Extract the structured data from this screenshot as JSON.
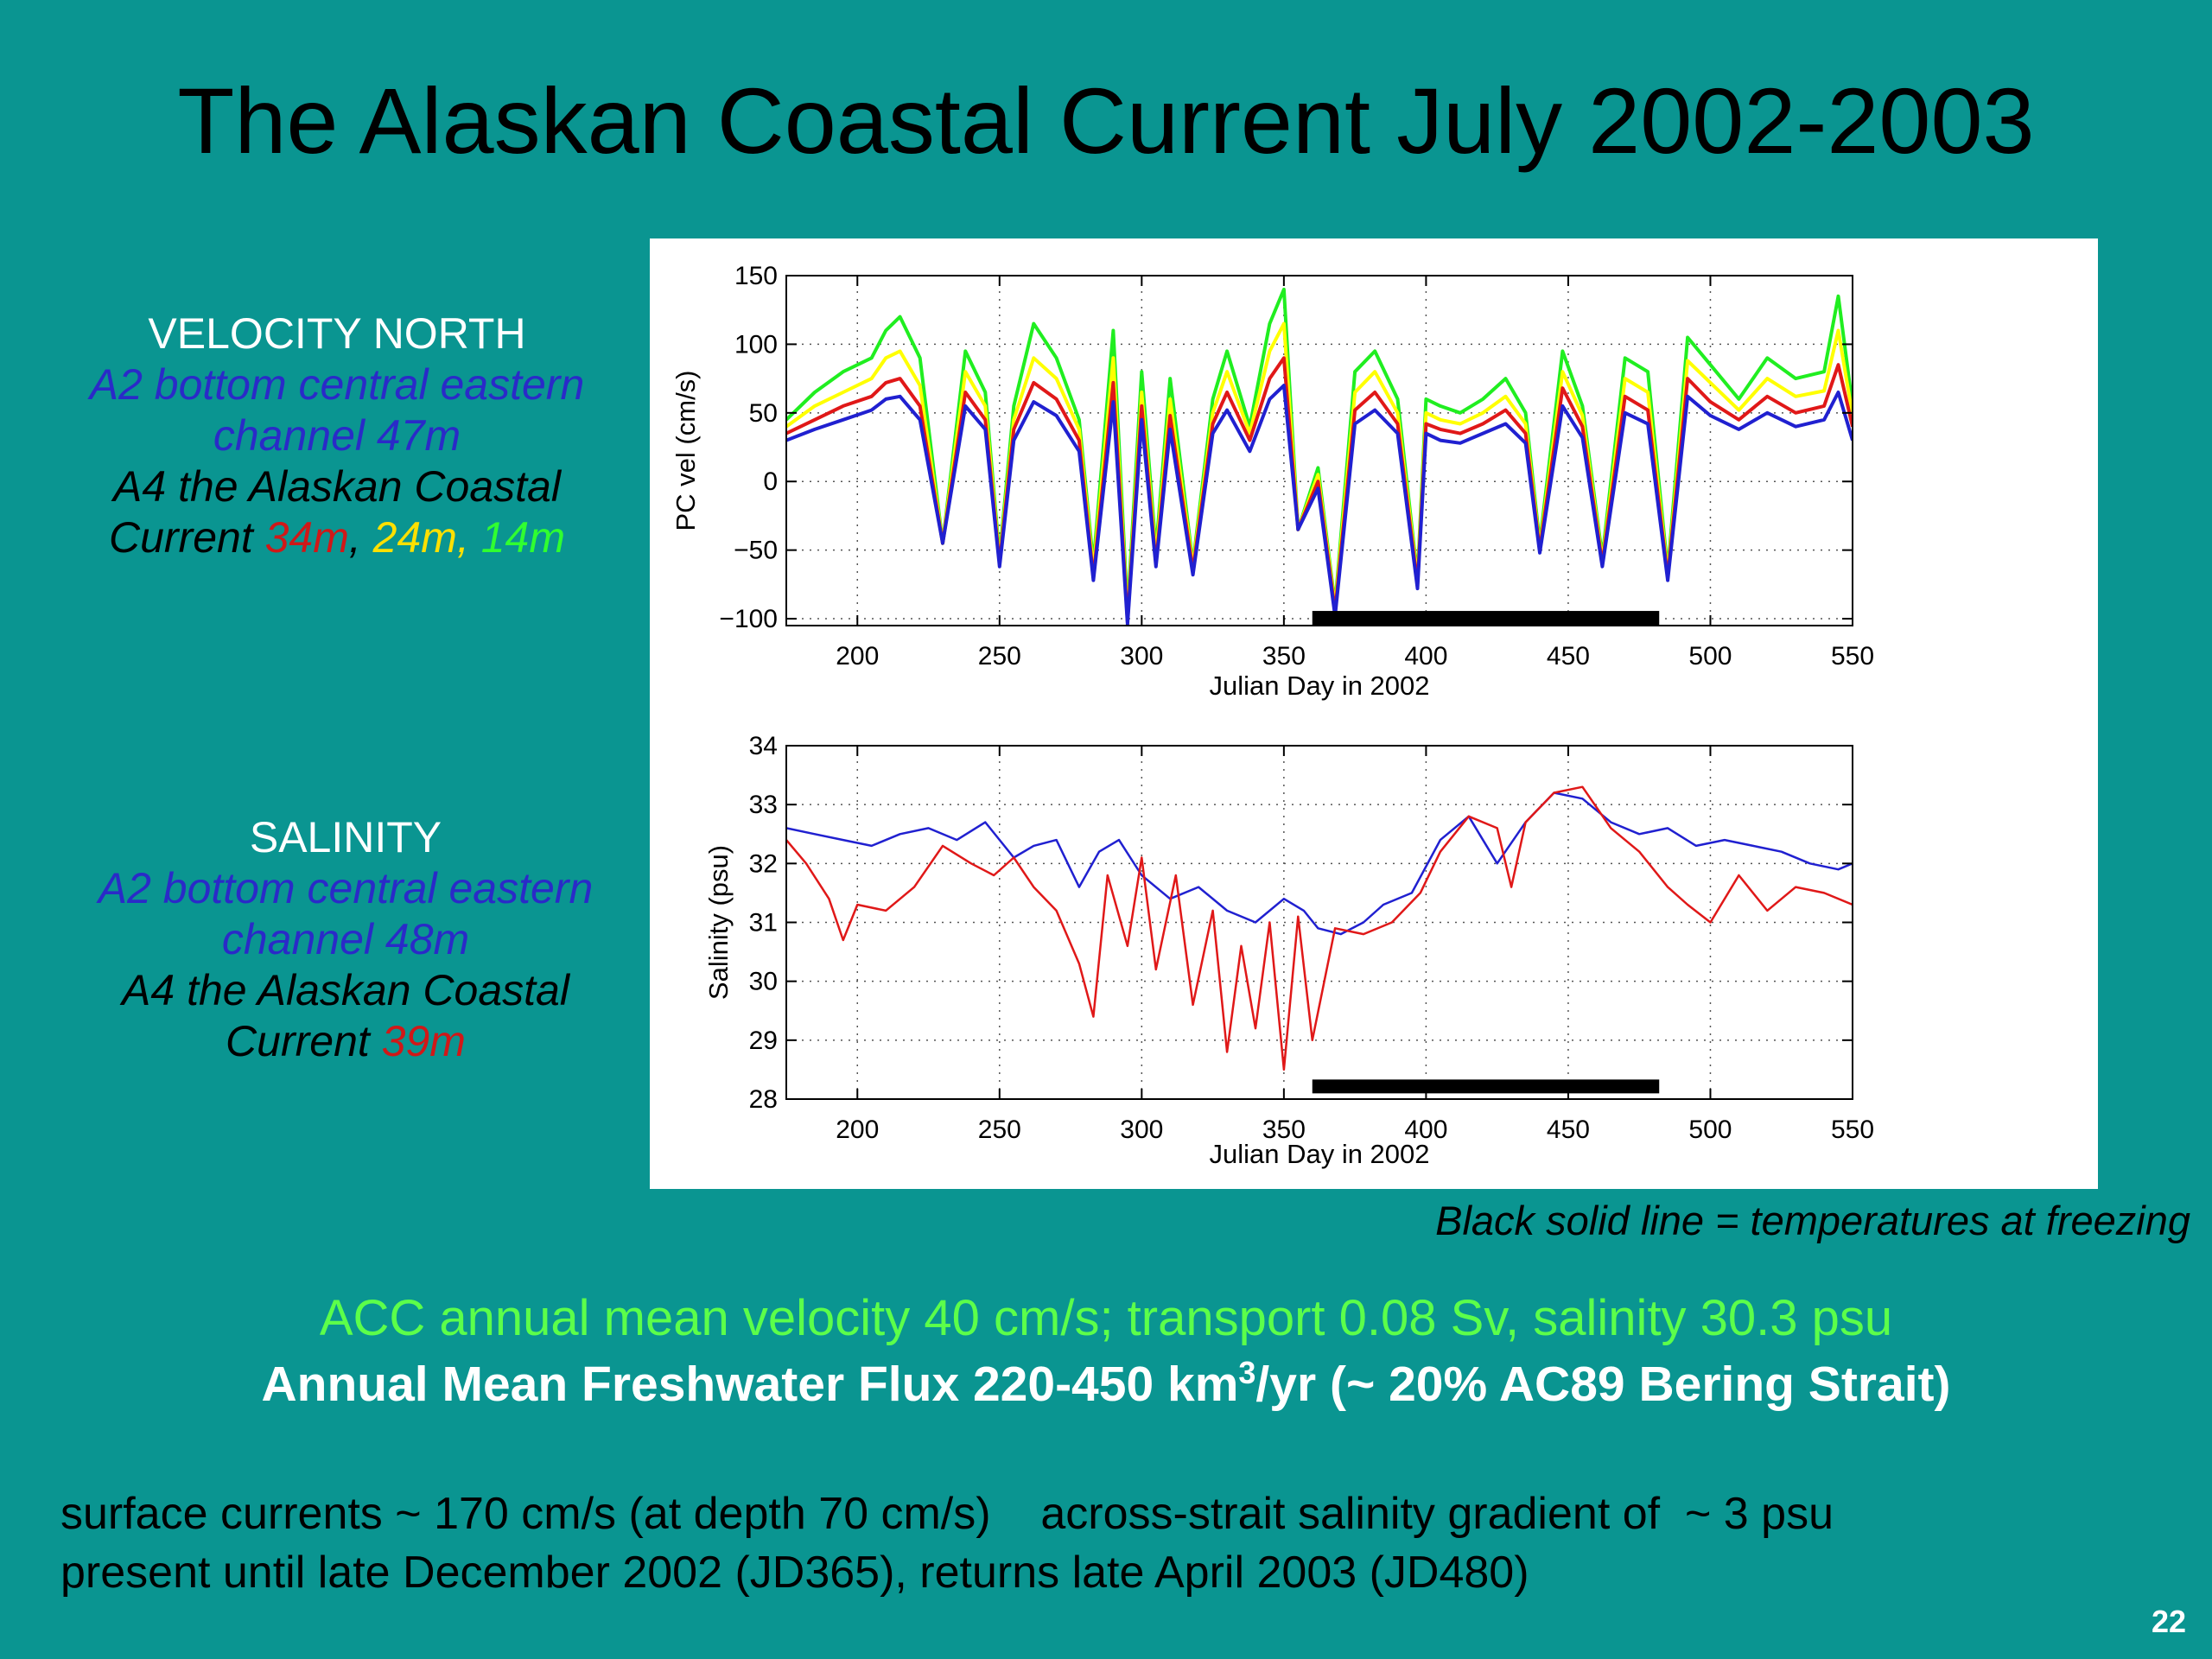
{
  "slide": {
    "title": "The Alaskan Coastal Current July 2002-2003",
    "page_number": "22",
    "velocity_legend": {
      "heading": "VELOCITY NORTH",
      "line1": "A2 bottom central eastern",
      "line2": "channel 47m",
      "line3": "A4 the Alaskan Coastal",
      "line4_prefix": "Current ",
      "depth_34": "34m",
      "sep1": ", ",
      "depth_24": "24m",
      "sep2": ", ",
      "depth_14": "14m"
    },
    "salinity_legend": {
      "heading": "SALINITY",
      "line1": "A2 bottom central eastern",
      "line2": "channel 48m",
      "line3": "A4 the Alaskan Coastal",
      "line4_prefix": "Current ",
      "depth_39": "39m"
    },
    "freeze_note": "Black solid line = temperatures at freezing",
    "acc_line": "ACC annual mean velocity 40 cm/s; transport 0.08 Sv, salinity 30.3 psu",
    "flux_line": {
      "prefix": "Annual Mean Freshwater Flux 220-450 km",
      "sup": "3",
      "suffix": "/yr  (~ 20% AC89 Bering Strait)"
    },
    "bottom_line1": "surface currents ~ 170 cm/s (at depth 70 cm/s)    across-strait salinity gradient of  ~ 3 psu",
    "bottom_line2": "present until late December 2002 (JD365), returns late April 2003 (JD480)"
  },
  "colors": {
    "background": "#0a9591",
    "a2_blue": "#2020d0",
    "a4_red": "#e01818",
    "a4_yellow": "#ffff00",
    "a4_green": "#20ee20",
    "legend_black_text": "#000000",
    "legend_red_text": "#d01818",
    "legend_yellow_text": "#ffe000",
    "legend_green_text": "#30ff30"
  },
  "chart_data": [
    {
      "type": "line",
      "xlabel": "Julian Day in 2002",
      "ylabel": "PC vel (cm/s)",
      "xlim": [
        175,
        550
      ],
      "ylim": [
        -105,
        150
      ],
      "xticks": [
        200,
        250,
        300,
        350,
        400,
        450,
        500,
        550
      ],
      "yticks": [
        -100,
        -50,
        0,
        50,
        100,
        150
      ],
      "ytick_labels": [
        "−100",
        "−50",
        "0",
        "50",
        "100",
        "150"
      ],
      "grid": "dotted",
      "freezing_bar": {
        "x_start": 360,
        "x_end": 482,
        "y": -100
      },
      "series": [
        {
          "depth": "14m",
          "color": "#20ee20",
          "x": [
            175,
            185,
            195,
            205,
            210,
            215,
            222,
            230,
            238,
            245,
            250,
            255,
            262,
            270,
            278,
            283,
            290,
            295,
            300,
            305,
            310,
            318,
            325,
            330,
            338,
            345,
            350,
            355,
            362,
            368,
            375,
            382,
            390,
            397,
            400,
            405,
            412,
            420,
            428,
            435,
            440,
            448,
            455,
            462,
            470,
            478,
            485,
            492,
            500,
            510,
            520,
            530,
            540,
            545,
            550
          ],
          "y": [
            45,
            65,
            80,
            90,
            110,
            120,
            90,
            -45,
            95,
            65,
            -55,
            55,
            115,
            90,
            45,
            -60,
            110,
            -95,
            80,
            -50,
            75,
            -60,
            60,
            95,
            40,
            115,
            140,
            -35,
            10,
            -90,
            80,
            95,
            60,
            -70,
            60,
            55,
            50,
            60,
            75,
            50,
            -45,
            95,
            55,
            -55,
            90,
            80,
            -65,
            105,
            85,
            60,
            90,
            75,
            80,
            135,
            55
          ]
        },
        {
          "depth": "24m",
          "color": "#ffff00",
          "x": [
            175,
            185,
            195,
            205,
            210,
            215,
            222,
            230,
            238,
            245,
            250,
            255,
            262,
            270,
            278,
            283,
            290,
            295,
            300,
            305,
            310,
            318,
            325,
            330,
            338,
            345,
            350,
            355,
            362,
            368,
            375,
            382,
            390,
            397,
            400,
            405,
            412,
            420,
            428,
            435,
            440,
            448,
            455,
            462,
            470,
            478,
            485,
            492,
            500,
            510,
            520,
            530,
            540,
            545,
            550
          ],
          "y": [
            40,
            55,
            65,
            75,
            90,
            95,
            70,
            -45,
            80,
            55,
            -58,
            45,
            90,
            75,
            38,
            -65,
            90,
            -100,
            65,
            -55,
            60,
            -62,
            50,
            80,
            35,
            95,
            115,
            -35,
            5,
            -92,
            65,
            80,
            50,
            -72,
            50,
            45,
            42,
            50,
            62,
            42,
            -48,
            80,
            48,
            -58,
            75,
            65,
            -68,
            88,
            72,
            52,
            75,
            62,
            66,
            110,
            48
          ]
        },
        {
          "depth": "34m",
          "color": "#e01818",
          "x": [
            175,
            185,
            195,
            205,
            210,
            215,
            222,
            230,
            238,
            245,
            250,
            255,
            262,
            270,
            278,
            283,
            290,
            295,
            300,
            305,
            310,
            318,
            325,
            330,
            338,
            345,
            350,
            355,
            362,
            368,
            375,
            382,
            390,
            397,
            400,
            405,
            412,
            420,
            428,
            435,
            440,
            448,
            455,
            462,
            470,
            478,
            485,
            492,
            500,
            510,
            520,
            530,
            540,
            545,
            550
          ],
          "y": [
            35,
            45,
            55,
            62,
            72,
            75,
            55,
            -45,
            65,
            45,
            -60,
            38,
            72,
            60,
            30,
            -70,
            72,
            -102,
            55,
            -60,
            48,
            -65,
            42,
            65,
            30,
            75,
            90,
            -35,
            0,
            -95,
            52,
            65,
            42,
            -75,
            42,
            38,
            35,
            42,
            52,
            35,
            -50,
            68,
            40,
            -60,
            62,
            52,
            -70,
            75,
            58,
            45,
            62,
            50,
            55,
            85,
            40
          ]
        },
        {
          "depth": "47m",
          "color": "#2020d0",
          "x": [
            175,
            185,
            195,
            205,
            210,
            215,
            222,
            230,
            238,
            245,
            250,
            255,
            262,
            270,
            278,
            283,
            290,
            295,
            300,
            305,
            310,
            318,
            325,
            330,
            338,
            345,
            350,
            355,
            362,
            368,
            375,
            382,
            390,
            397,
            400,
            405,
            412,
            420,
            428,
            435,
            440,
            448,
            455,
            462,
            470,
            478,
            485,
            492,
            500,
            510,
            520,
            530,
            540,
            545,
            550
          ],
          "y": [
            30,
            38,
            45,
            52,
            60,
            62,
            45,
            -45,
            55,
            38,
            -62,
            30,
            58,
            48,
            22,
            -72,
            58,
            -104,
            45,
            -62,
            38,
            -68,
            35,
            52,
            22,
            60,
            70,
            -35,
            -5,
            -98,
            42,
            52,
            35,
            -78,
            35,
            30,
            28,
            35,
            42,
            28,
            -52,
            55,
            32,
            -62,
            50,
            42,
            -72,
            62,
            48,
            38,
            50,
            40,
            45,
            65,
            30
          ]
        }
      ]
    },
    {
      "type": "line",
      "xlabel": "Julian Day in 2002",
      "ylabel": "Salinity (psu)",
      "xlim": [
        175,
        550
      ],
      "ylim": [
        28,
        34
      ],
      "xticks": [
        200,
        250,
        300,
        350,
        400,
        450,
        500,
        550
      ],
      "yticks": [
        28,
        29,
        30,
        31,
        32,
        33,
        34
      ],
      "grid": "dotted",
      "freezing_bar": {
        "x_start": 360,
        "x_end": 482,
        "y": 28.2
      },
      "series": [
        {
          "name": "A2 48m",
          "color": "#2020d0",
          "x": [
            175,
            185,
            195,
            205,
            215,
            225,
            235,
            245,
            255,
            262,
            270,
            278,
            285,
            292,
            300,
            310,
            320,
            330,
            340,
            350,
            357,
            362,
            370,
            378,
            385,
            395,
            405,
            415,
            425,
            435,
            445,
            455,
            465,
            475,
            485,
            495,
            505,
            515,
            525,
            535,
            545,
            550
          ],
          "y": [
            32.6,
            32.5,
            32.4,
            32.3,
            32.5,
            32.6,
            32.4,
            32.7,
            32.1,
            32.3,
            32.4,
            31.6,
            32.2,
            32.4,
            31.8,
            31.4,
            31.6,
            31.2,
            31.0,
            31.4,
            31.2,
            30.9,
            30.8,
            31.0,
            31.3,
            31.5,
            32.4,
            32.8,
            32.0,
            32.7,
            33.2,
            33.1,
            32.7,
            32.5,
            32.6,
            32.3,
            32.4,
            32.3,
            32.2,
            32.0,
            31.9,
            32.0
          ]
        },
        {
          "name": "A4 39m",
          "color": "#e01818",
          "x": [
            175,
            182,
            190,
            195,
            200,
            210,
            220,
            230,
            240,
            248,
            255,
            262,
            270,
            278,
            283,
            288,
            295,
            300,
            305,
            312,
            318,
            325,
            330,
            335,
            340,
            345,
            350,
            355,
            360,
            368,
            378,
            388,
            398,
            405,
            415,
            425,
            430,
            435,
            445,
            455,
            465,
            475,
            485,
            492,
            500,
            510,
            520,
            530,
            540,
            550
          ],
          "y": [
            32.4,
            32.0,
            31.4,
            30.7,
            31.3,
            31.2,
            31.6,
            32.3,
            32.0,
            31.8,
            32.1,
            31.6,
            31.2,
            30.3,
            29.4,
            31.8,
            30.6,
            32.1,
            30.2,
            31.8,
            29.6,
            31.2,
            28.8,
            30.6,
            29.2,
            31.0,
            28.5,
            31.1,
            29.0,
            30.9,
            30.8,
            31.0,
            31.5,
            32.2,
            32.8,
            32.6,
            31.6,
            32.7,
            33.2,
            33.3,
            32.6,
            32.2,
            31.6,
            31.3,
            31.0,
            31.8,
            31.2,
            31.6,
            31.5,
            31.3
          ]
        }
      ]
    }
  ]
}
